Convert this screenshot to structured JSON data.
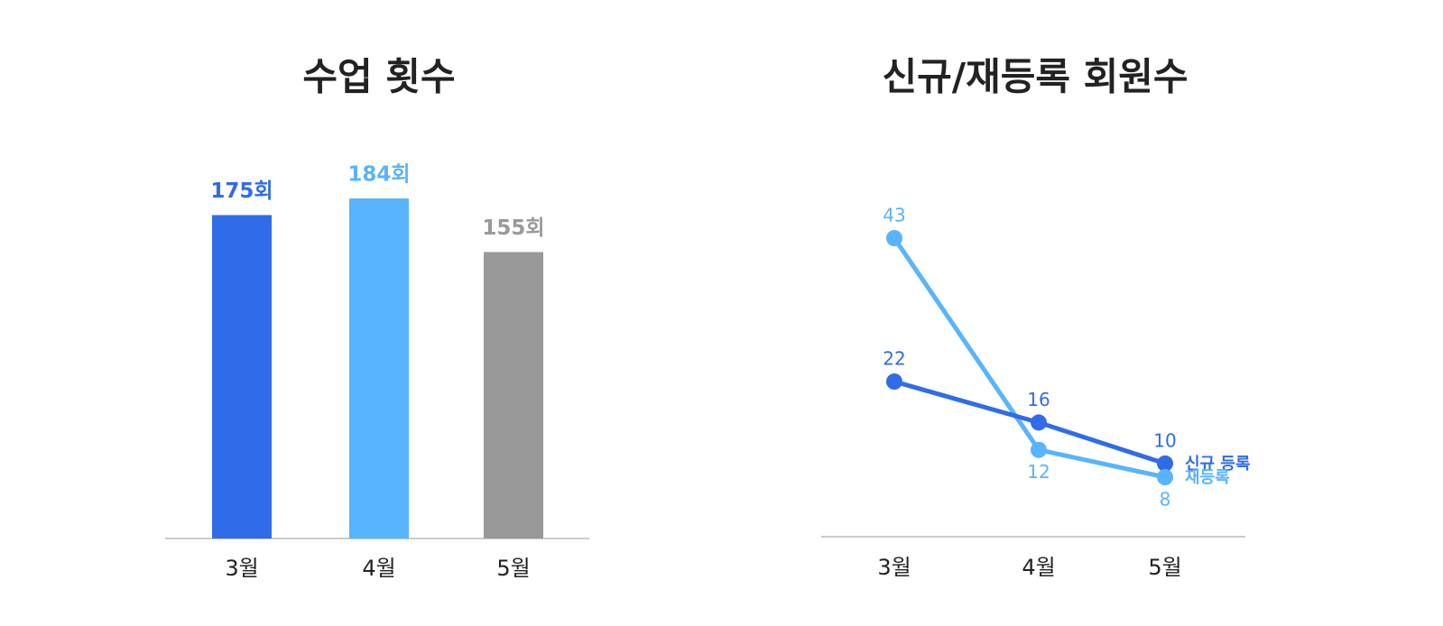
{
  "chart_data": [
    {
      "type": "bar",
      "title": "수업 횟수",
      "categories": [
        "3월",
        "4월",
        "5월"
      ],
      "values": [
        175,
        184,
        155
      ],
      "value_labels": [
        "175회",
        "184회",
        "155회"
      ],
      "colors": [
        "#306ce8",
        "#58b4fd",
        "#999999"
      ]
    },
    {
      "type": "line",
      "title": "신규/재등록 회원수",
      "categories": [
        "3월",
        "4월",
        "5월"
      ],
      "series": [
        {
          "name": "신규 등록",
          "color": "#306ce8",
          "values": [
            22,
            16,
            10
          ]
        },
        {
          "name": "재등록",
          "color": "#58b4fd",
          "values": [
            43,
            12,
            8
          ]
        }
      ]
    }
  ]
}
